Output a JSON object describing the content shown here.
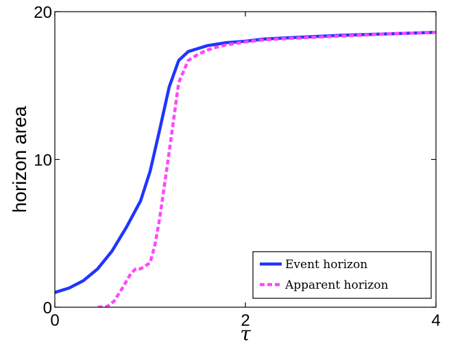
{
  "chart_data": {
    "type": "line",
    "title": "",
    "xlabel": "τ",
    "ylabel": "horizon area",
    "xlim": [
      0,
      4
    ],
    "ylim": [
      0,
      20
    ],
    "xticks": [
      0,
      2,
      4
    ],
    "yticks": [
      0,
      10,
      20
    ],
    "xtick_labels": [
      "0",
      "2",
      "4"
    ],
    "ytick_labels": [
      "0",
      "10",
      "20"
    ],
    "grid": false,
    "legend_position": "bottom-right",
    "series": [
      {
        "name": "Event horizon",
        "color": "#1f35ff",
        "style": "solid",
        "x": [
          0,
          0.15,
          0.3,
          0.45,
          0.6,
          0.75,
          0.9,
          1.0,
          1.1,
          1.2,
          1.3,
          1.4,
          1.5,
          1.6,
          1.7,
          1.8,
          2.0,
          2.2,
          2.5,
          3.0,
          3.5,
          4.0
        ],
        "y": [
          1.0,
          1.3,
          1.8,
          2.6,
          3.8,
          5.4,
          7.2,
          9.2,
          12.0,
          14.9,
          16.7,
          17.3,
          17.5,
          17.7,
          17.8,
          17.9,
          18.0,
          18.15,
          18.25,
          18.4,
          18.5,
          18.6
        ]
      },
      {
        "name": "Apparent horizon",
        "color": "#ff46ff",
        "style": "dashed",
        "x": [
          0.45,
          0.55,
          0.62,
          0.7,
          0.8,
          0.85,
          0.9,
          0.95,
          1.0,
          1.05,
          1.1,
          1.2,
          1.3,
          1.4,
          1.5,
          1.6,
          1.7,
          1.8,
          2.0,
          2.2,
          2.5,
          3.0,
          3.5,
          4.0
        ],
        "y": [
          0.0,
          0.05,
          0.4,
          1.2,
          2.3,
          2.6,
          2.6,
          2.8,
          3.0,
          4.2,
          6.0,
          10.5,
          15.2,
          16.7,
          17.1,
          17.4,
          17.6,
          17.75,
          17.95,
          18.1,
          18.2,
          18.35,
          18.5,
          18.6
        ]
      }
    ]
  }
}
